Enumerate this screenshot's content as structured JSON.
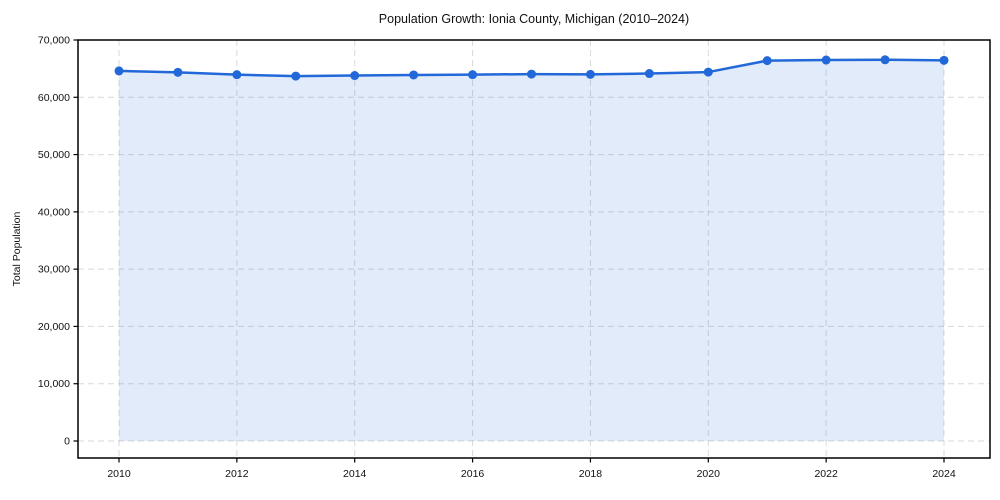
{
  "chart_data": {
    "type": "line",
    "title": "Population Growth: Ionia County, Michigan (2010–2024)",
    "xlabel": "",
    "ylabel": "Total Population",
    "series_name": "Total Population",
    "x": [
      2010,
      2011,
      2012,
      2013,
      2014,
      2015,
      2016,
      2017,
      2018,
      2019,
      2020,
      2021,
      2022,
      2023,
      2024
    ],
    "values": [
      64600,
      64350,
      63950,
      63700,
      63800,
      63900,
      63950,
      64050,
      64000,
      64150,
      64400,
      66400,
      66500,
      66550,
      66450
    ],
    "xlim": [
      2010,
      2024
    ],
    "ylim": [
      0,
      70000
    ],
    "xticks": {
      "values": [
        2010,
        2012,
        2014,
        2016,
        2018,
        2020,
        2022,
        2024
      ],
      "labels": [
        "2010",
        "2012",
        "2014",
        "2016",
        "2018",
        "2020",
        "2022",
        "2024"
      ]
    },
    "yticks": {
      "values": [
        0,
        10000,
        20000,
        30000,
        40000,
        50000,
        60000,
        70000
      ],
      "labels": [
        "0",
        "10,000",
        "20,000",
        "30,000",
        "40,000",
        "50,000",
        "60,000",
        "70,000"
      ]
    },
    "grid": true,
    "grid_style": "dashed",
    "legend": "none",
    "marker": "circle",
    "area_fill": true,
    "area_baseline": 0,
    "style": {
      "line_color": "#2268d8",
      "marker_color": "#2268d8",
      "fill_color": "rgba(34,104,216,0.13)",
      "grid_color": "#d9d9d9",
      "spine_color": "#000000",
      "text_color": "#111111",
      "background": "#ffffff"
    }
  }
}
